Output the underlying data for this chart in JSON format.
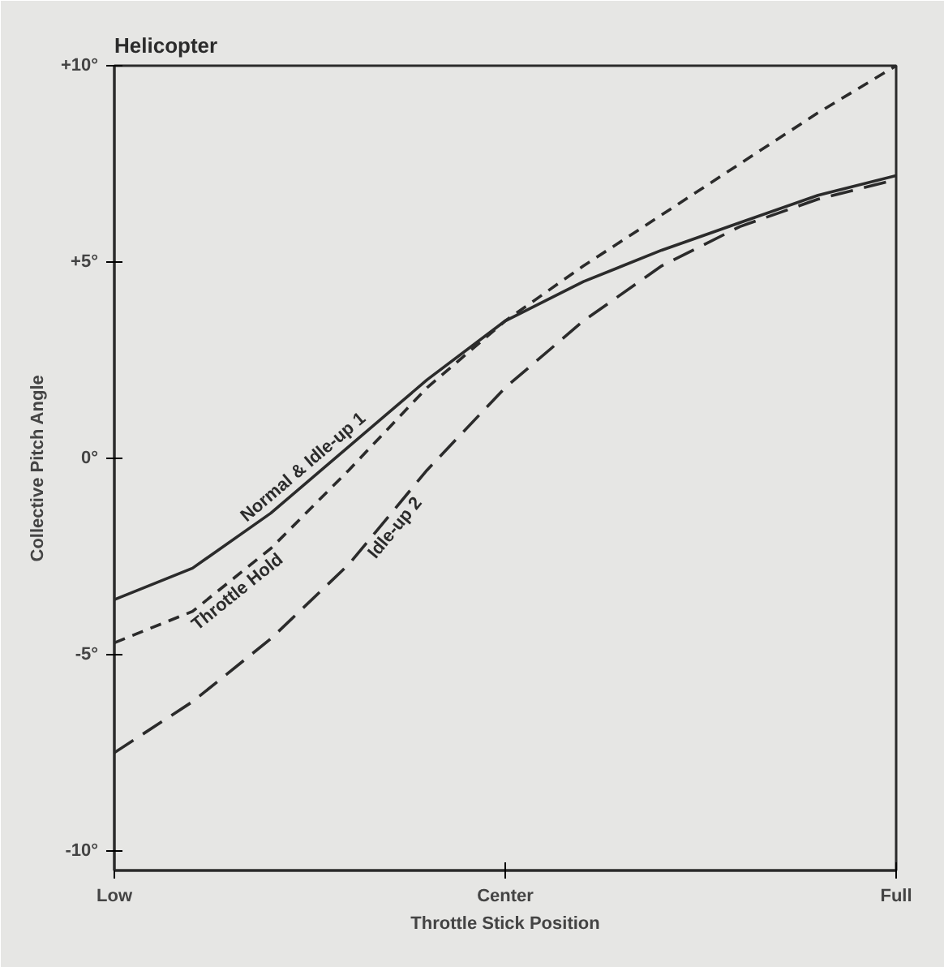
{
  "chart_data": {
    "type": "line",
    "title": "Helicopter",
    "xlabel": "Throttle Stick Position",
    "ylabel": "Collective Pitch Angle",
    "categories": [
      "Low",
      null,
      null,
      null,
      null,
      "Center",
      null,
      null,
      null,
      null,
      "Full"
    ],
    "ylim": [
      -10.5,
      10
    ],
    "yticks": [
      {
        "value": 10,
        "label": "+10°"
      },
      {
        "value": 5,
        "label": "+5°"
      },
      {
        "value": 0,
        "label": "0°"
      },
      {
        "value": -5,
        "label": "-5°"
      },
      {
        "value": -10,
        "label": "-10°"
      }
    ],
    "grid": false,
    "marker": "none",
    "series": [
      {
        "name": "Normal & Idle-up 1",
        "color": "#2b2b2b",
        "line_style": "solid",
        "values": [
          -3.6,
          -2.8,
          -1.4,
          0.3,
          2.0,
          3.5,
          4.5,
          5.3,
          6.0,
          6.7,
          7.2
        ]
      },
      {
        "name": "Throttle Hold",
        "color": "#2b2b2b",
        "line_style": "dashed",
        "values": [
          -4.7,
          -3.9,
          -2.3,
          -0.3,
          1.8,
          3.5,
          4.9,
          6.2,
          7.5,
          8.8,
          10.0
        ]
      },
      {
        "name": "Idle-up 2",
        "color": "#2b2b2b",
        "line_style": "dashed",
        "values": [
          -7.5,
          -6.2,
          -4.6,
          -2.7,
          -0.3,
          1.8,
          3.5,
          4.9,
          5.9,
          6.6,
          7.1
        ]
      }
    ]
  }
}
